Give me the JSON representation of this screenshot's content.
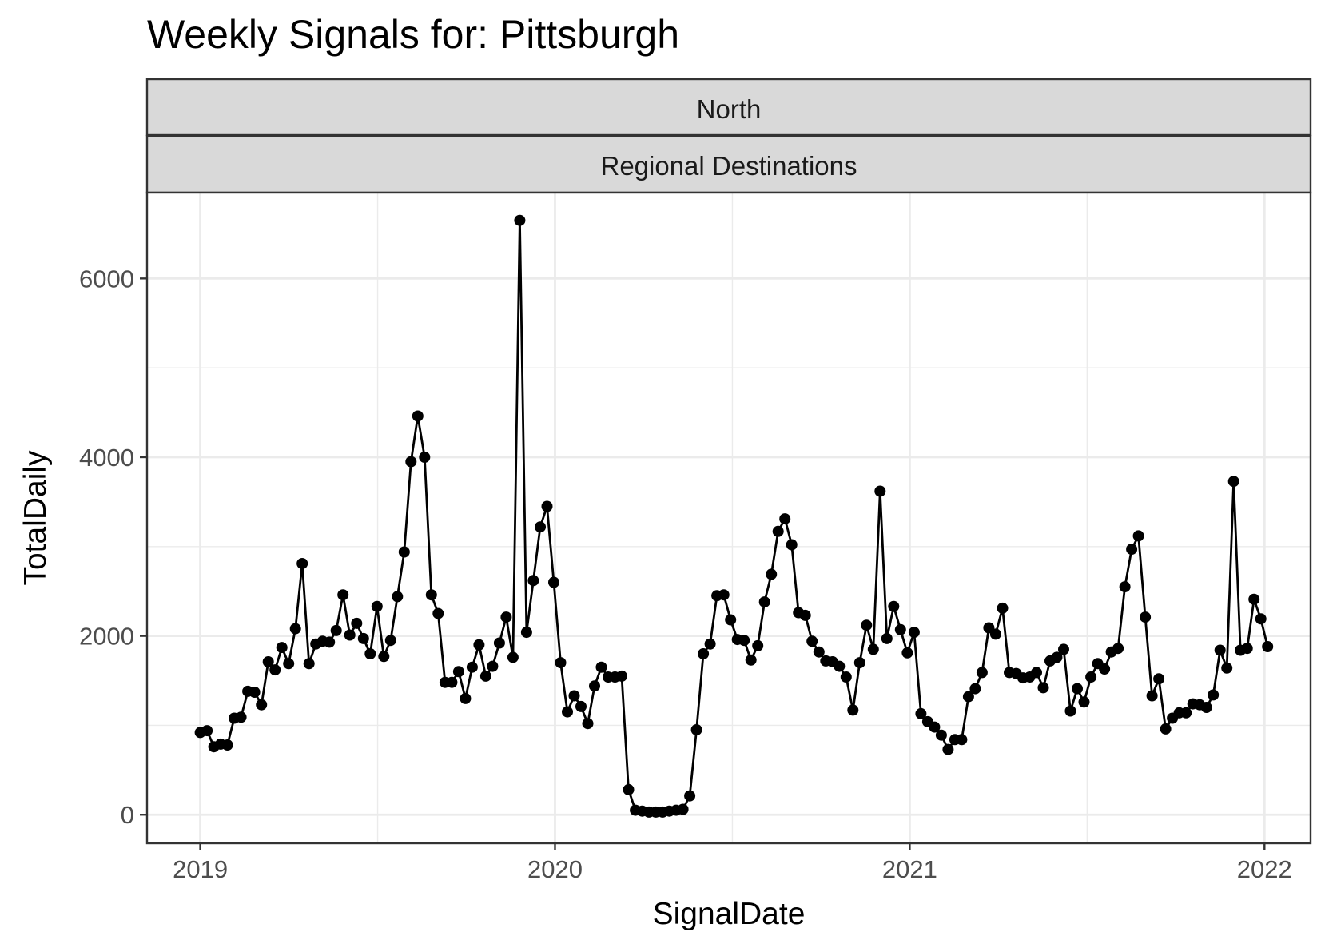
{
  "chart_data": {
    "type": "line",
    "title": "Weekly Signals for: Pittsburgh",
    "facet_strips": [
      "North",
      "Regional Destinations"
    ],
    "xlabel": "SignalDate",
    "ylabel": "TotalDaily",
    "xlim": [
      2018.85,
      2022.13
    ],
    "ylim": [
      -320,
      6960
    ],
    "x_ticks": [
      {
        "value": 2019,
        "label": "2019"
      },
      {
        "value": 2020,
        "label": "2020"
      },
      {
        "value": 2021,
        "label": "2021"
      },
      {
        "value": 2022,
        "label": "2022"
      }
    ],
    "y_ticks": [
      {
        "value": 0,
        "label": "0"
      },
      {
        "value": 2000,
        "label": "2000"
      },
      {
        "value": 4000,
        "label": "4000"
      },
      {
        "value": 6000,
        "label": "6000"
      }
    ],
    "grid": true,
    "legend": "none",
    "series_color": "#000000",
    "series": [
      {
        "start": "2019-01-01",
        "interval": "weekly",
        "values": [
          920,
          940,
          760,
          790,
          780,
          1080,
          1090,
          1380,
          1370,
          1230,
          1710,
          1620,
          1870,
          1690,
          2080,
          2810,
          1690,
          1910,
          1940,
          1930,
          2060,
          2460,
          2010,
          2140,
          1970,
          1800,
          2330,
          1770,
          1950,
          2440,
          2940,
          3950,
          4460,
          4000,
          2460,
          2250,
          1480,
          1480,
          1600,
          1300,
          1650,
          1900,
          1550,
          1660,
          1920,
          2210,
          1760,
          6650,
          2040,
          2620,
          3220,
          3450,
          2600,
          1700,
          1150,
          1330,
          1210,
          1020,
          1440,
          1650,
          1540,
          1540,
          1550,
          280,
          50,
          40,
          30,
          30,
          30,
          40,
          50,
          60,
          210,
          950,
          1800,
          1910,
          2450,
          2460,
          2180,
          1960,
          1950,
          1730,
          1890,
          2380,
          2690,
          3170,
          3310,
          3020,
          2260,
          2230,
          1940,
          1820,
          1720,
          1710,
          1660,
          1540,
          1170,
          1700,
          2120,
          1850,
          3620,
          1970,
          2330,
          2070,
          1810,
          2040,
          1130,
          1040,
          980,
          890,
          730,
          840,
          840,
          1320,
          1410,
          1590,
          2090,
          2020,
          2310,
          1590,
          1580,
          1530,
          1540,
          1590,
          1420,
          1720,
          1760,
          1850,
          1160,
          1410,
          1260,
          1540,
          1690,
          1630,
          1820,
          1860,
          2550,
          2970,
          3120,
          2210,
          1330,
          1520,
          960,
          1080,
          1140,
          1140,
          1240,
          1230,
          1200,
          1340,
          1840,
          1640,
          3730,
          1840,
          1860,
          2410,
          2190,
          1880
        ]
      }
    ]
  }
}
